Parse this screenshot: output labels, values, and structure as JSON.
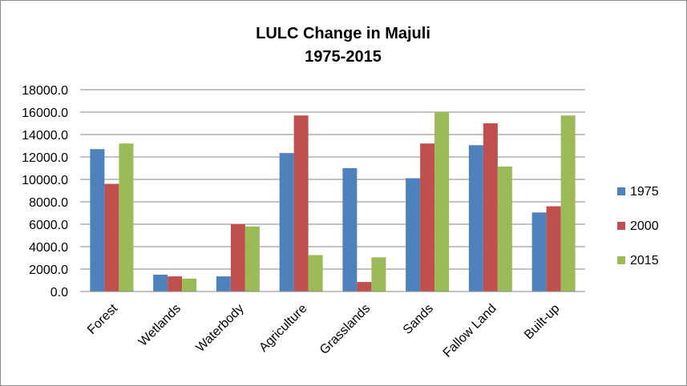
{
  "chart_data": {
    "type": "bar",
    "title": "LULC Change in Majuli",
    "subtitle": "1975-2015",
    "xlabel": "",
    "ylabel": "",
    "ylim": [
      0,
      18000
    ],
    "y_ticks": [
      "0.0",
      "2000.0",
      "4000.0",
      "6000.0",
      "8000.0",
      "10000.0",
      "12000.0",
      "14000.0",
      "16000.0",
      "18000.0"
    ],
    "grid": true,
    "legend_position": "right",
    "categories": [
      "Forest",
      "Wetlands",
      "Waterbody",
      "Agriculture",
      "Grasslands",
      "Sands",
      "Fallow Land",
      "Built-up"
    ],
    "series": [
      {
        "name": "1975",
        "color": "#4f81bd",
        "values": [
          12700,
          1500,
          1350,
          12350,
          11000,
          10100,
          13050,
          7050
        ]
      },
      {
        "name": "2000",
        "color": "#c0504d",
        "values": [
          9600,
          1350,
          6000,
          15700,
          850,
          13200,
          15000,
          7600
        ]
      },
      {
        "name": "2015",
        "color": "#9bbb59",
        "values": [
          13200,
          1150,
          5800,
          3250,
          3050,
          16000,
          11150,
          15700
        ]
      }
    ]
  }
}
